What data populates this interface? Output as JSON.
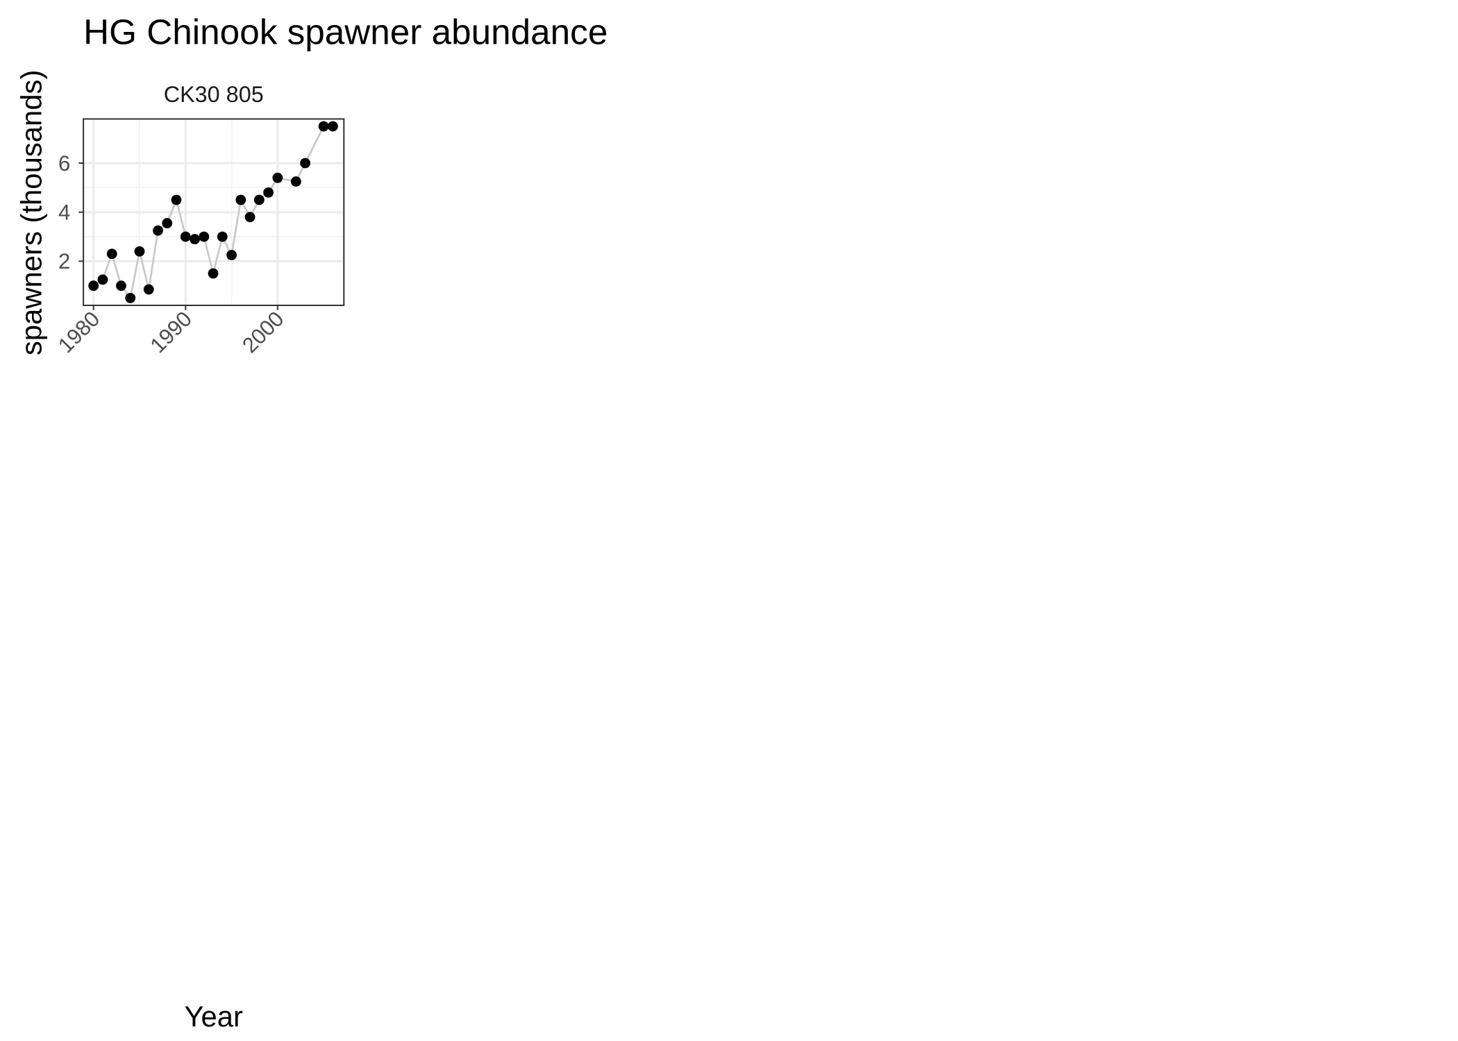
{
  "chart_data": {
    "type": "line",
    "title": "HG Chinook spawner abundance",
    "panel_title": "CK30 805",
    "x_label": "Year",
    "y_label": "spawners (thousands)",
    "x": [
      1980,
      1981,
      1982,
      1983,
      1984,
      1985,
      1986,
      1987,
      1988,
      1989,
      1990,
      1991,
      1992,
      1993,
      1994,
      1995,
      1996,
      1997,
      1998,
      1999,
      2000,
      2002,
      2003,
      2005,
      2006
    ],
    "values": [
      1.0,
      1.25,
      2.3,
      1.0,
      0.5,
      2.4,
      0.85,
      3.25,
      3.55,
      4.5,
      3.0,
      2.9,
      3.0,
      1.5,
      3.0,
      2.25,
      4.5,
      3.8,
      4.5,
      4.8,
      5.4,
      5.25,
      6.0,
      7.5,
      7.5
    ],
    "line_color": "#c8c8c8",
    "point_color": "#000000",
    "xlim": [
      1978.9,
      2007.2
    ],
    "ylim": [
      0.2,
      7.8
    ],
    "xticks": [
      1980,
      1990,
      2000
    ],
    "yticks": [
      2,
      4,
      6
    ],
    "grid": true
  }
}
